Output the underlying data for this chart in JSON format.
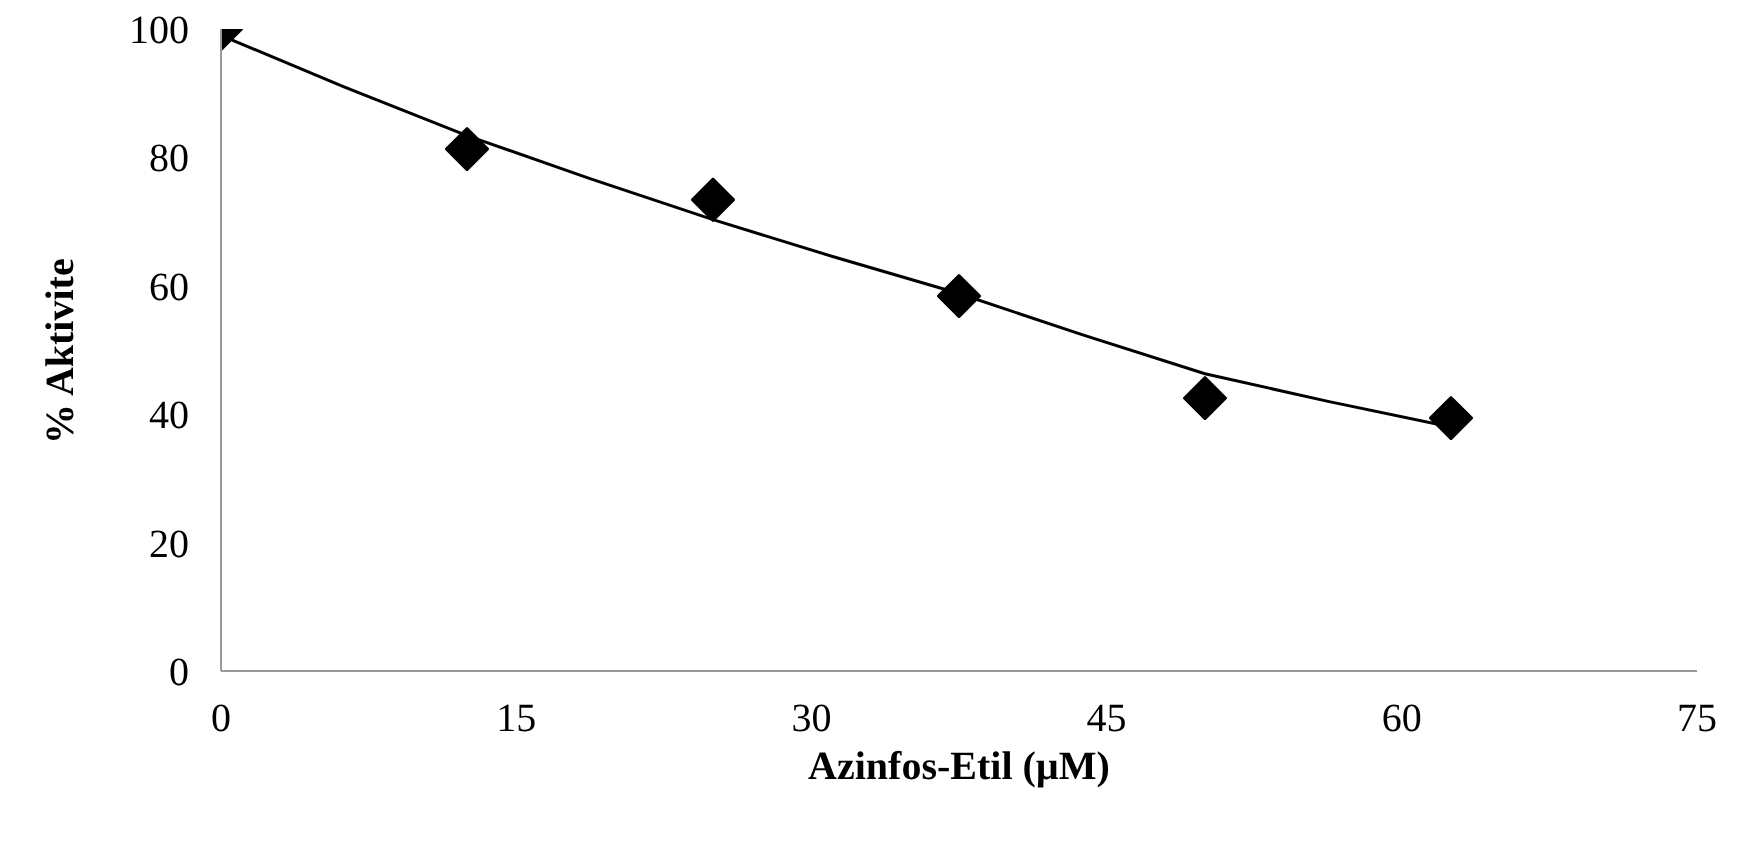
{
  "chart_data": {
    "type": "scatter",
    "xlabel": "Azinfos-Etil (µM)",
    "ylabel": "% Aktivite",
    "xlim": [
      0,
      75
    ],
    "ylim": [
      0,
      100
    ],
    "xticks": [
      0,
      15,
      30,
      45,
      60,
      75
    ],
    "yticks": [
      0,
      20,
      40,
      60,
      80,
      100
    ],
    "grid": false,
    "series": [
      {
        "marker": "diamond",
        "color": "#000000",
        "x": [
          0,
          12.5,
          25,
          37.5,
          50,
          62.5
        ],
        "values": [
          100,
          81.3,
          73.4,
          58.4,
          42.5,
          39.4
        ]
      },
      {
        "type": "line",
        "marker": "none",
        "color": "#000000",
        "x": [
          0,
          6.25,
          12.5,
          18.75,
          25,
          31.25,
          37.5,
          43.75,
          50,
          56.25,
          62.5
        ],
        "values": [
          99,
          91,
          83.4,
          76.7,
          70.3,
          64.4,
          58.8,
          52.4,
          46.3,
          42,
          38
        ]
      }
    ]
  }
}
